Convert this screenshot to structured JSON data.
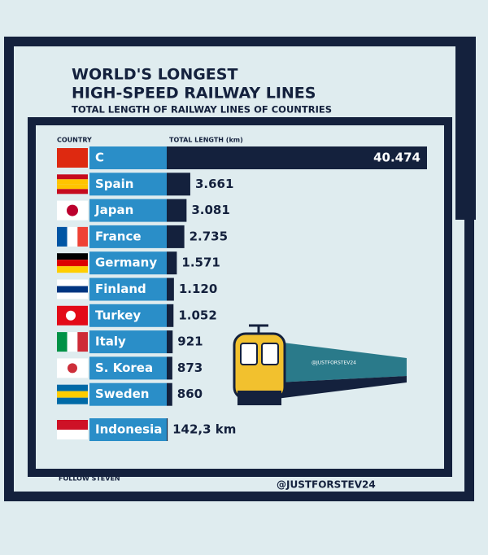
{
  "chart_data": {
    "type": "bar",
    "title": [
      "WORLD'S LONGEST",
      "HIGH-SPEED RAILWAY LINES"
    ],
    "subtitle": "TOTAL LENGTH OF RAILWAY LINES OF COUNTRIES",
    "category_header": "COUNTRY",
    "value_header": "TOTAL LENGTH (km)",
    "categories": [
      "C",
      "Spain",
      "Japan",
      "France",
      "Germany",
      "Finland",
      "Turkey",
      "Italy",
      "S. Korea",
      "Sweden",
      "Indonesia"
    ],
    "values": [
      40474,
      3661,
      3081,
      2735,
      1571,
      1120,
      1052,
      921,
      873,
      860,
      142.3
    ],
    "value_labels": [
      "40.474",
      "3.661",
      "3.081",
      "2.735",
      "1.571",
      "1.120",
      "1.052",
      "921",
      "873",
      "860",
      "142,3 km"
    ],
    "color": "#14213d",
    "label_color": "#2a8ec8",
    "footer_left": "FOLLOW STEVEN",
    "footer_right": "@JUSTFORSTEV24",
    "watermark": "@JUSTFORSTEV24"
  }
}
